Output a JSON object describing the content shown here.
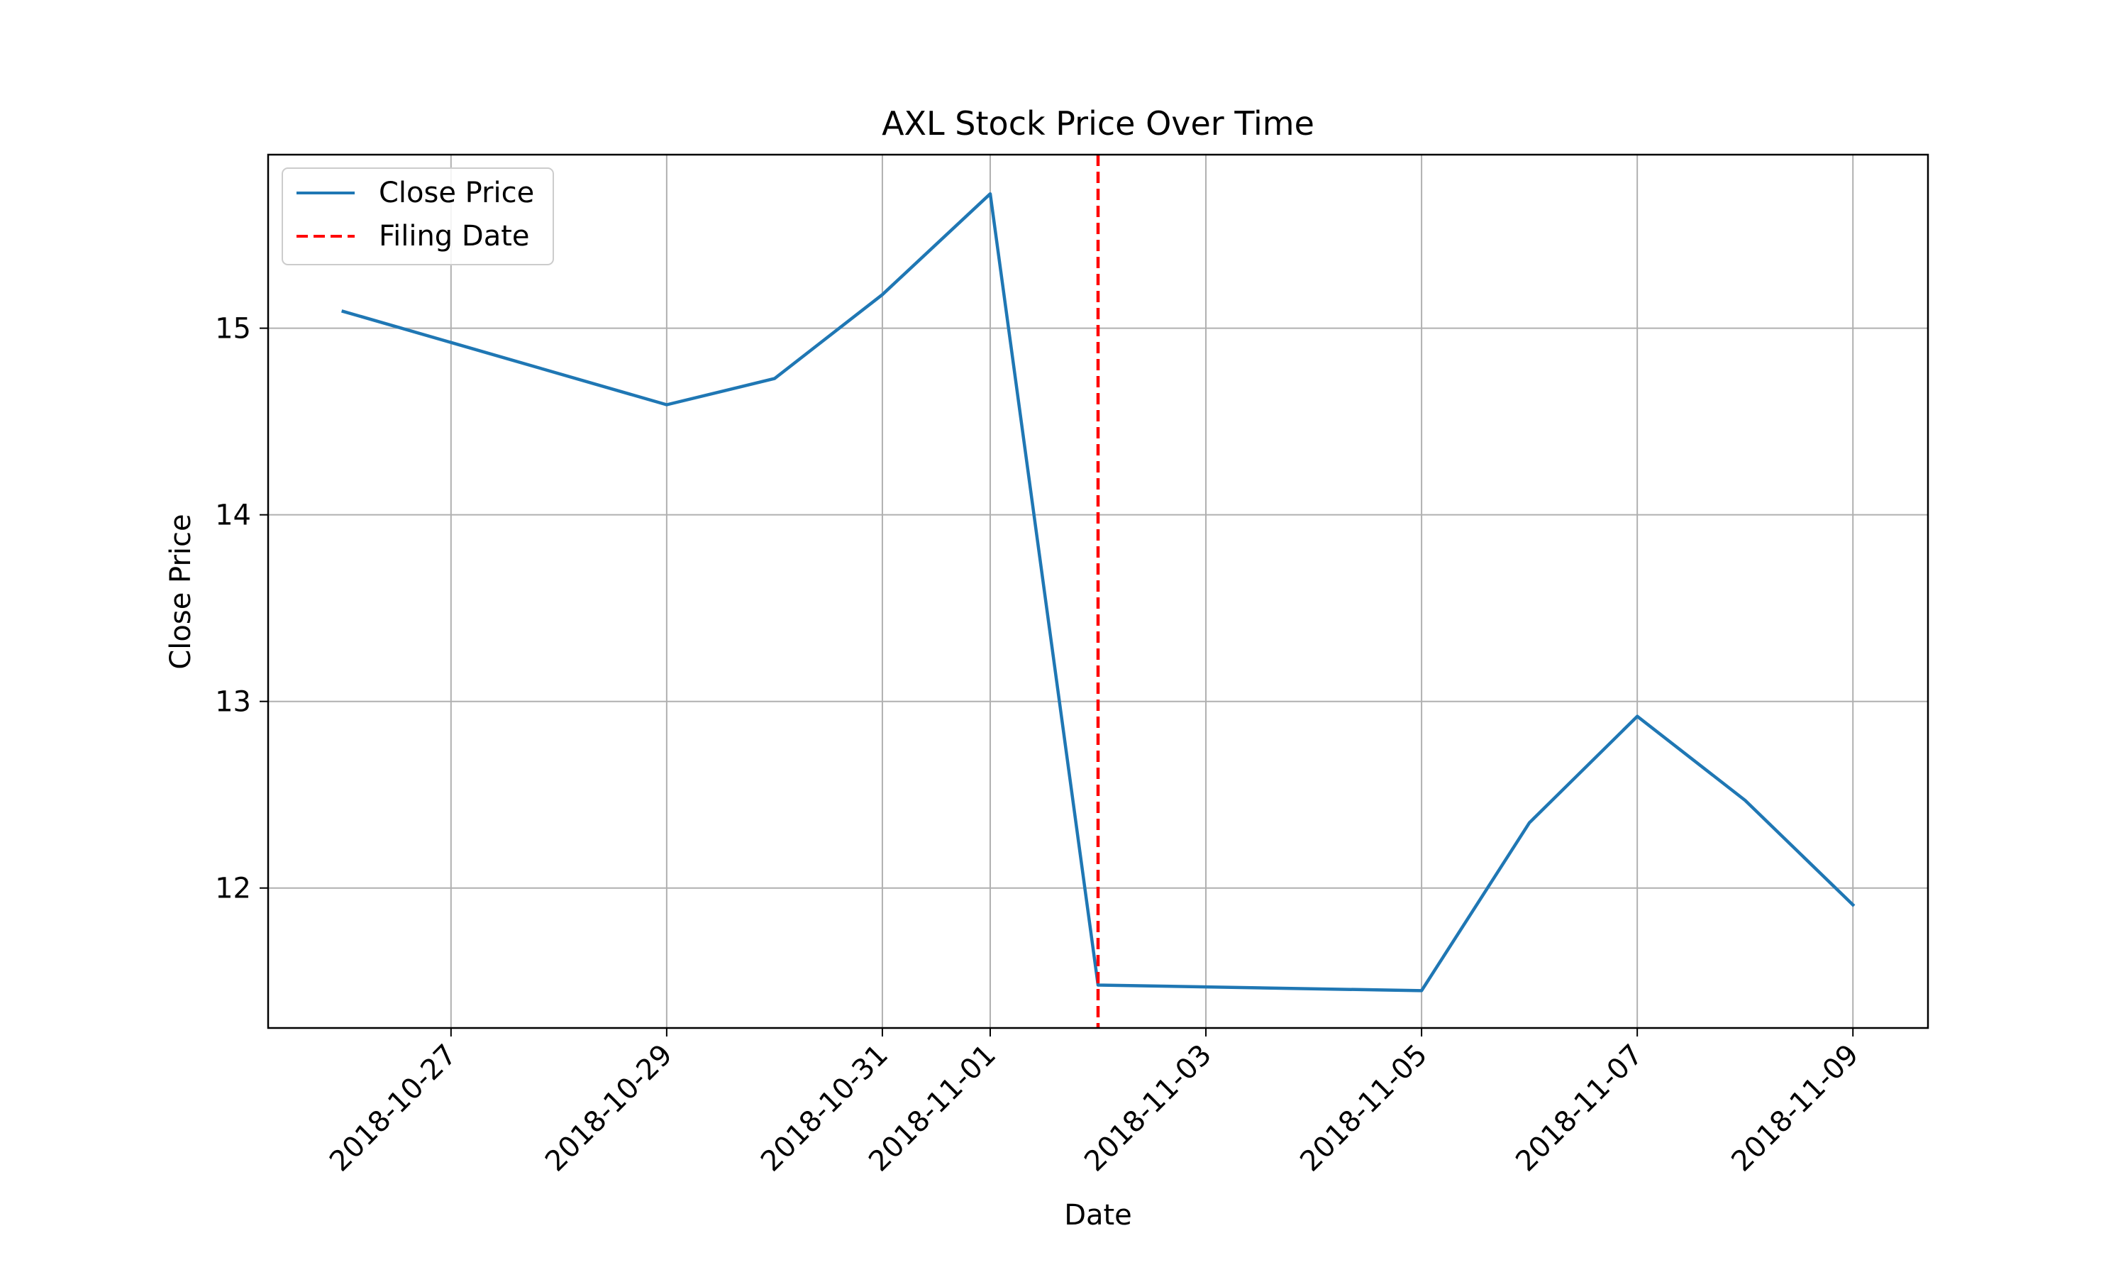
{
  "chart_data": {
    "type": "line",
    "title": "AXL Stock Price Over Time",
    "xlabel": "Date",
    "ylabel": "Close Price",
    "x_axis_kind": "date",
    "xlim": [
      "2018-10-25T07:18:00",
      "2018-11-09T16:42:00"
    ],
    "ylim": [
      11.25,
      15.93
    ],
    "x_ticks": [
      "2018-10-27",
      "2018-10-29",
      "2018-10-31",
      "2018-11-01",
      "2018-11-03",
      "2018-11-05",
      "2018-11-07",
      "2018-11-09"
    ],
    "y_ticks": [
      12,
      13,
      14,
      15
    ],
    "grid": true,
    "legend_position": "top-left",
    "series": [
      {
        "name": "Close Price",
        "color": "#1f77b4",
        "style": "solid",
        "x": [
          "2018-10-26",
          "2018-10-29",
          "2018-10-30",
          "2018-10-31",
          "2018-11-01",
          "2018-11-02",
          "2018-11-05",
          "2018-11-06",
          "2018-11-07",
          "2018-11-08",
          "2018-11-09"
        ],
        "y": [
          15.09,
          14.59,
          14.73,
          15.18,
          15.72,
          11.48,
          11.45,
          12.35,
          12.92,
          12.47,
          11.91
        ]
      }
    ],
    "reference_lines": [
      {
        "name": "Filing Date",
        "orientation": "vertical",
        "x": "2018-11-02",
        "color": "#ff0000",
        "style": "dashed"
      }
    ]
  }
}
